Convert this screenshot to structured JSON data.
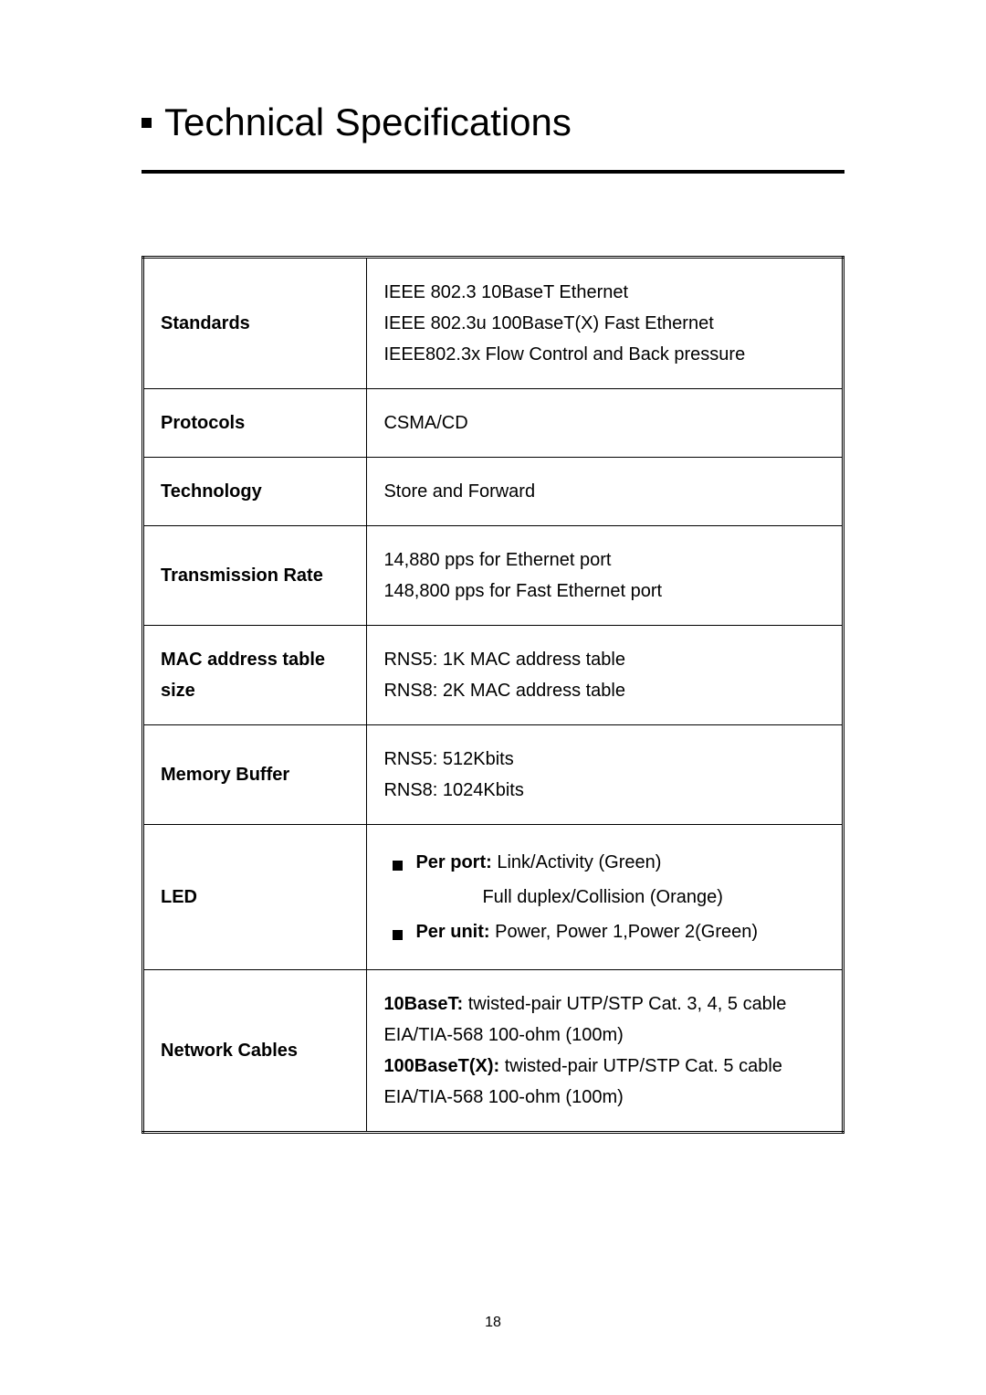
{
  "heading": "Technical Specifications",
  "table": {
    "rows": [
      {
        "label": "Standards",
        "type": "lines",
        "lines": [
          "IEEE 802.3 10BaseT Ethernet",
          "IEEE 802.3u 100BaseT(X) Fast Ethernet",
          "IEEE802.3x Flow Control and Back pressure"
        ]
      },
      {
        "label": "Protocols",
        "type": "text",
        "text": "CSMA/CD"
      },
      {
        "label": "Technology",
        "type": "text",
        "text": "Store and Forward"
      },
      {
        "label": "Transmission Rate",
        "type": "lines",
        "lines": [
          "14,880 pps for Ethernet port",
          "148,800 pps for Fast Ethernet port"
        ]
      },
      {
        "label": "MAC address table size",
        "type": "lines",
        "lines": [
          "RNS5: 1K MAC address table",
          "RNS8: 2K MAC address table"
        ]
      },
      {
        "label": "Memory Buffer",
        "type": "lines",
        "lines": [
          "RNS5:   512Kbits",
          "RNS8: 1024Kbits"
        ]
      },
      {
        "label": "LED",
        "type": "led",
        "items": [
          {
            "boldPrefix": "Per port:",
            "text": " Link/Activity (Green)",
            "indentAfter": "Full duplex/Collision (Orange)"
          },
          {
            "boldPrefix": "Per unit:",
            "text": " Power, Power 1,Power 2(Green)"
          }
        ]
      },
      {
        "label": "Network Cables",
        "type": "cables",
        "blocks": [
          {
            "boldPrefix": "10BaseT:",
            "text": " twisted-pair UTP/STP Cat. 3, 4, 5 cable",
            "sub": "EIA/TIA-568 100-ohm (100m)"
          },
          {
            "boldPrefix": "100BaseT(X):",
            "text": " twisted-pair UTP/STP Cat. 5 cable",
            "sub": "EIA/TIA-568 100-ohm (100m)"
          }
        ]
      }
    ]
  },
  "pageNumber": "18",
  "style": {
    "background_color": "#ffffff",
    "text_color": "#000000",
    "heading_fontsize": 42,
    "body_fontsize": 20,
    "line_height": 1.7,
    "underline_height": 4,
    "bullet_size": 11,
    "table_border_color": "#000000",
    "label_col_width_pct": 32
  }
}
